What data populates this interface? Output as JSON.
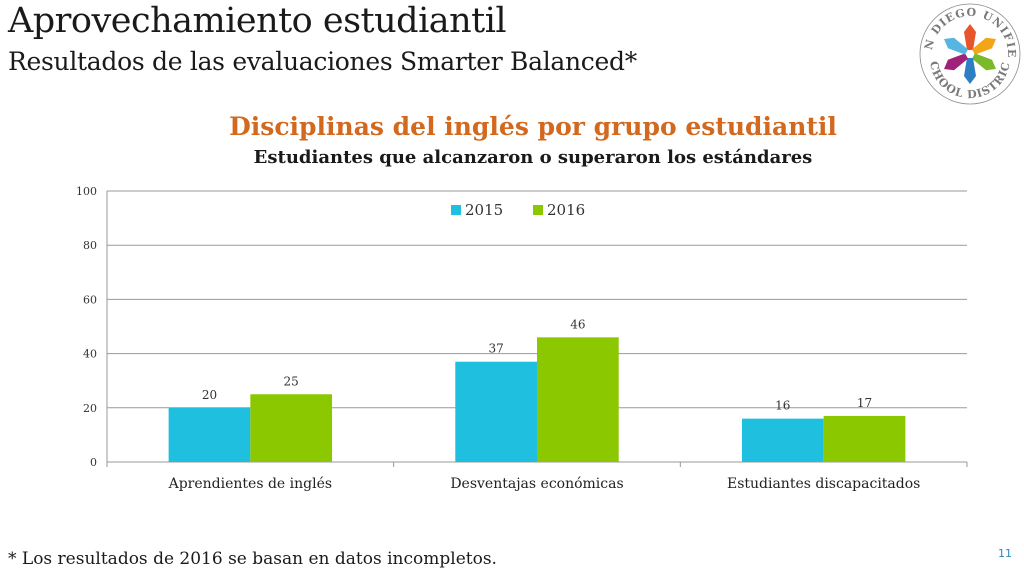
{
  "slide": {
    "title": "Aprovechamiento estudiantil",
    "subtitle": "Resultados de las evaluaciones Smarter Balanced*",
    "footnote": "* Los resultados de 2016 se basan en datos incompletos.",
    "page_number": "11"
  },
  "logo": {
    "text_top": "SAN DIEGO UNIFIED",
    "text_bottom": "SCHOOL DISTRICT",
    "colors": [
      "#e8542b",
      "#f2a516",
      "#7ab929",
      "#2e7ec3",
      "#a0217a",
      "#57b5e1"
    ]
  },
  "chart_data": {
    "type": "bar",
    "title": "Disciplinas del inglés por grupo estudiantil",
    "subtitle": "Estudiantes que alcanzaron o superaron los estándares",
    "categories": [
      "Aprendientes de inglés",
      "Desventajas económicas",
      "Estudiantes discapacitados"
    ],
    "series": [
      {
        "name": "2015",
        "values": [
          20,
          37,
          16
        ],
        "color": "#1fbfe0"
      },
      {
        "name": "2016",
        "values": [
          25,
          46,
          17
        ],
        "color": "#8cc800"
      }
    ],
    "ylim": [
      0,
      100
    ],
    "yticks": [
      "0",
      "20",
      "40",
      "60",
      "80",
      "100"
    ],
    "grid": true,
    "legend_position": "top-center"
  }
}
